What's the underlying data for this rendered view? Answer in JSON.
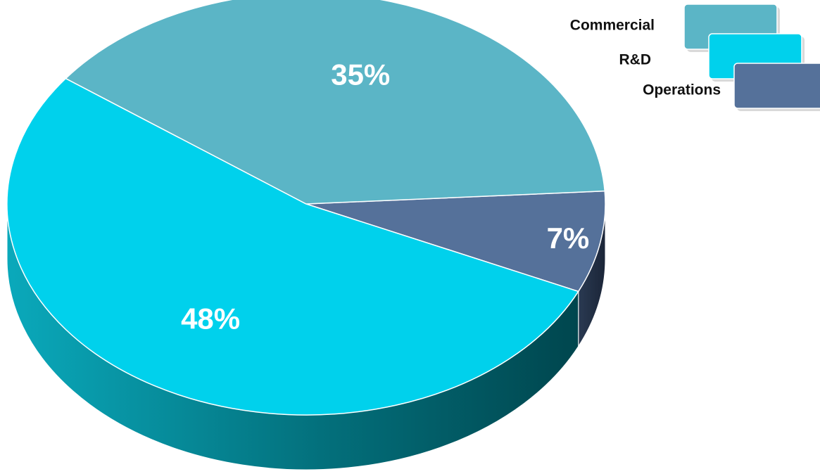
{
  "chart_data": {
    "type": "pie",
    "style": "3d",
    "categories": [
      "Commercial",
      "R&D",
      "Operations"
    ],
    "values": [
      35,
      48,
      7
    ],
    "value_labels": [
      "35%",
      "48%",
      "7%"
    ],
    "colors": {
      "Commercial": "#5BB5C6",
      "R&D": "#00D1EC",
      "Operations": "#55719A"
    },
    "legend": {
      "placement": "top-right",
      "entries": [
        "Commercial",
        "R&D",
        "Operations"
      ]
    }
  }
}
